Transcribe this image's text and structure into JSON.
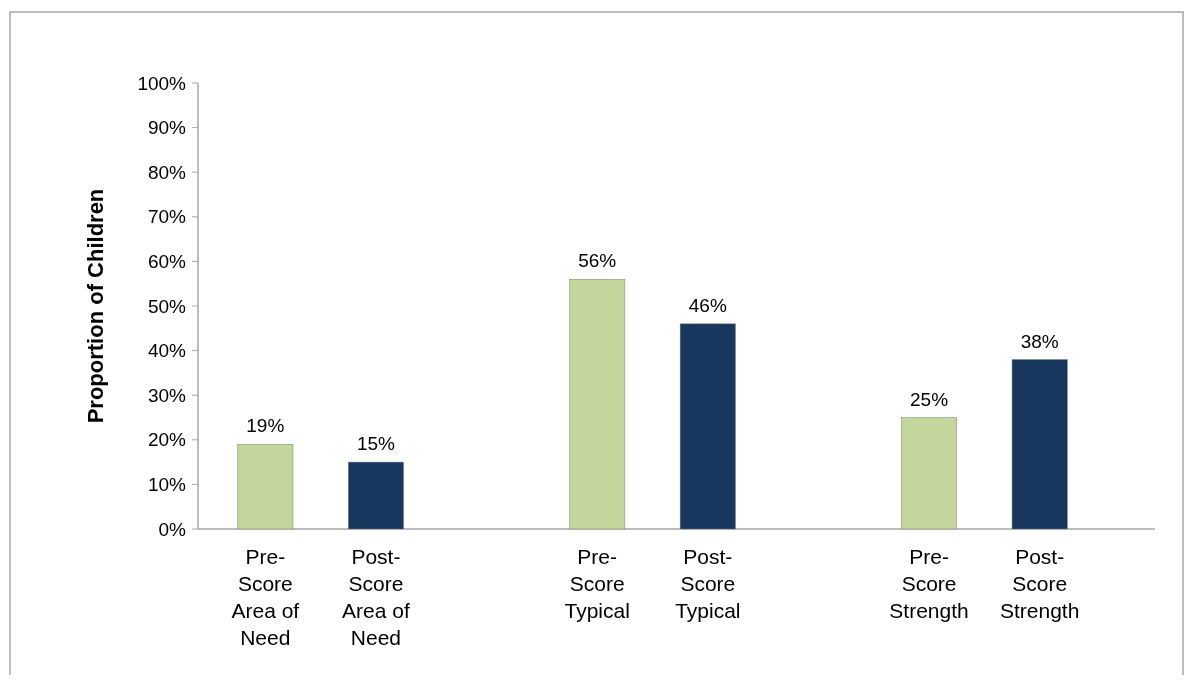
{
  "chart_data": {
    "type": "bar",
    "ylabel": "Proportion of Children",
    "categories": [
      "Pre-Score Area of Need",
      "Post-Score Area of Need",
      null,
      "Pre-Score Typical",
      "Post-Score Typical",
      null,
      "Pre-Score Strength",
      "Post-Score Strength"
    ],
    "values": [
      19,
      15,
      null,
      56,
      46,
      null,
      25,
      38
    ],
    "colors": [
      "#c3d69b",
      "#17375e",
      null,
      "#c3d69b",
      "#17375e",
      null,
      "#c3d69b",
      "#17375e"
    ],
    "ylim": [
      0,
      100
    ],
    "yticks": [
      {
        "value": 0,
        "label": "0%"
      },
      {
        "value": 10,
        "label": "10%"
      },
      {
        "value": 20,
        "label": "20%"
      },
      {
        "value": 30,
        "label": "30%"
      },
      {
        "value": 40,
        "label": "40%"
      },
      {
        "value": 50,
        "label": "50%"
      },
      {
        "value": 60,
        "label": "60%"
      },
      {
        "value": 70,
        "label": "70%"
      },
      {
        "value": 80,
        "label": "80%"
      },
      {
        "value": 90,
        "label": "90%"
      },
      {
        "value": 100,
        "label": "100%"
      }
    ],
    "value_labels": [
      "19%",
      "15%",
      null,
      "56%",
      "46%",
      null,
      "25%",
      "38%"
    ],
    "grid": false
  }
}
